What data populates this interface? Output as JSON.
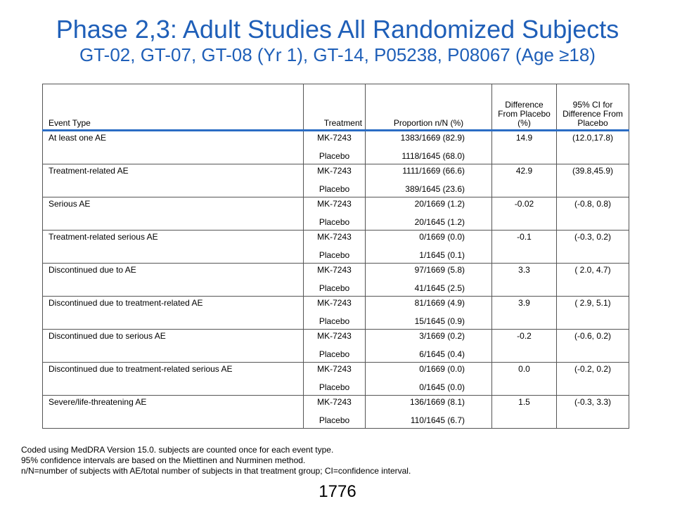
{
  "title": "Phase 2,3: Adult Studies All Randomized Subjects",
  "subtitle": "GT-02, GT-07, GT-08 (Yr 1), GT-14, P05238, P08067 (Age ≥18)",
  "table": {
    "headers": {
      "event_type": "Event Type",
      "treatment": "Treatment",
      "proportion": "Proportion n/N (%)",
      "difference": "Difference From Placebo (%)",
      "ci": "95% CI for Difference From Placebo"
    },
    "rows": [
      {
        "event": "At least one AE",
        "trt1": "MK-7243",
        "prop1": "1383/1669 (82.9)",
        "diff": "14.9",
        "ci": "(12.0,17.8)",
        "trt2": "Placebo",
        "prop2": "1118/1645 (68.0)"
      },
      {
        "event": "Treatment-related AE",
        "trt1": "MK-7243",
        "prop1": "1111/1669 (66.6)",
        "diff": "42.9",
        "ci": "(39.8,45.9)",
        "trt2": "Placebo",
        "prop2": "389/1645 (23.6)"
      },
      {
        "event": "Serious AE",
        "trt1": "MK-7243",
        "prop1": "20/1669 (1.2)",
        "diff": "-0.02",
        "ci": "(-0.8, 0.8)",
        "trt2": "Placebo",
        "prop2": "20/1645 (1.2)"
      },
      {
        "event": "Treatment-related serious AE",
        "trt1": "MK-7243",
        "prop1": "0/1669 (0.0)",
        "diff": "-0.1",
        "ci": "(-0.3, 0.2)",
        "trt2": "Placebo",
        "prop2": "1/1645 (0.1)"
      },
      {
        "event": "Discontinued due to AE",
        "trt1": "MK-7243",
        "prop1": "97/1669 (5.8)",
        "diff": "3.3",
        "ci": "( 2.0, 4.7)",
        "trt2": "Placebo",
        "prop2": "41/1645 (2.5)"
      },
      {
        "event": "Discontinued due to treatment-related AE",
        "trt1": "MK-7243",
        "prop1": "81/1669 (4.9)",
        "diff": "3.9",
        "ci": "( 2.9, 5.1)",
        "trt2": "Placebo",
        "prop2": "15/1645 (0.9)"
      },
      {
        "event": "Discontinued due to serious AE",
        "trt1": "MK-7243",
        "prop1": "3/1669 (0.2)",
        "diff": "-0.2",
        "ci": "(-0.6, 0.2)",
        "trt2": "Placebo",
        "prop2": "6/1645 (0.4)"
      },
      {
        "event": "Discontinued due to treatment-related serious AE",
        "trt1": "MK-7243",
        "prop1": "0/1669 (0.0)",
        "diff": "0.0",
        "ci": "(-0.2, 0.2)",
        "trt2": "Placebo",
        "prop2": "0/1645 (0.0)"
      },
      {
        "event": "Severe/life-threatening AE",
        "trt1": "MK-7243",
        "prop1": "136/1669 (8.1)",
        "diff": "1.5",
        "ci": "(-0.3, 3.3)",
        "trt2": "Placebo",
        "prop2": "110/1645 (6.7)"
      }
    ]
  },
  "footnotes": [
    "Coded using MedDRA Version 15.0. subjects are counted once for each event type.",
    "95% confidence intervals are based on the Miettinen and Nurminen method.",
    "n/N=number  of subjects with AE/total number of subjects in that treatment group; CI=confidence interval."
  ],
  "page_number": "1776",
  "colors": {
    "title": "#1f5fb8",
    "header_rule": "#2a6cc4"
  }
}
